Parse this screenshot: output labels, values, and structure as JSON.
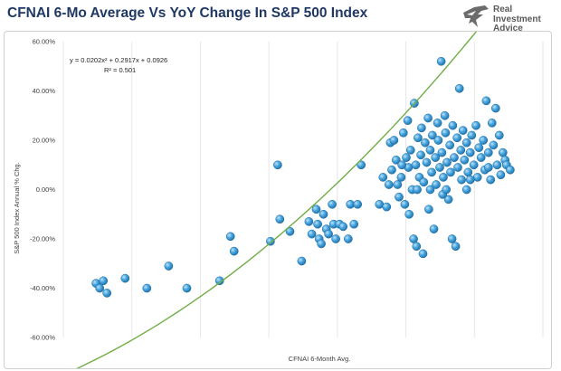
{
  "page": {
    "title": "CFNAI 6-Mo Average Vs YoY Change In S&P 500 Index",
    "brand_line1": "Real",
    "brand_line2": "Investment",
    "brand_line3": "Advice"
  },
  "chart_data": {
    "type": "scatter",
    "title": "CFNAI 6-Mo Average Vs YoY Change In S&P 500 Index",
    "xlabel": "CFNAI 6-Month Avg.",
    "ylabel": "S&P 500 Index Annual % Chg.",
    "x_tick_labels_shown": false,
    "ylim": [
      -0.6,
      0.6
    ],
    "y_ticks": [
      "60.00%",
      "40.00%",
      "20.00%",
      "0.00%",
      "-20.00%",
      "-40.00%",
      "-60.00%"
    ],
    "grid": "vertical-only",
    "trendline": {
      "type": "polynomial",
      "equation": "y = 0.0202x² + 0.2917x + 0.0926",
      "r_squared": "R² = 0.501",
      "coefficients": [
        0.0202,
        0.2917,
        0.0926
      ],
      "color": "#70ad47"
    },
    "point_color": "#3a9bd5",
    "points": [
      [
        -3.55,
        -0.38
      ],
      [
        -3.45,
        -0.37
      ],
      [
        -3.5,
        -0.4
      ],
      [
        -3.4,
        -0.42
      ],
      [
        -3.15,
        -0.36
      ],
      [
        -2.85,
        -0.4
      ],
      [
        -2.55,
        -0.31
      ],
      [
        -2.3,
        -0.4
      ],
      [
        -1.85,
        -0.37
      ],
      [
        -1.7,
        -0.19
      ],
      [
        -1.65,
        -0.25
      ],
      [
        -1.15,
        -0.21
      ],
      [
        -1.02,
        -0.12
      ],
      [
        -1.05,
        0.1
      ],
      [
        -0.88,
        -0.17
      ],
      [
        -0.72,
        -0.29
      ],
      [
        -0.62,
        -0.13
      ],
      [
        -0.58,
        -0.18
      ],
      [
        -0.52,
        -0.08
      ],
      [
        -0.5,
        -0.14
      ],
      [
        -0.48,
        -0.2
      ],
      [
        -0.45,
        -0.22
      ],
      [
        -0.42,
        -0.1
      ],
      [
        -0.38,
        -0.16
      ],
      [
        -0.35,
        -0.18
      ],
      [
        -0.3,
        -0.06
      ],
      [
        -0.28,
        -0.14
      ],
      [
        -0.25,
        -0.2
      ],
      [
        -0.2,
        -0.14
      ],
      [
        -0.15,
        -0.15
      ],
      [
        -0.08,
        -0.2
      ],
      [
        -0.05,
        -0.06
      ],
      [
        0.0,
        -0.14
      ],
      [
        0.05,
        -0.06
      ],
      [
        0.1,
        0.1
      ],
      [
        0.35,
        -0.06
      ],
      [
        0.45,
        -0.07
      ],
      [
        0.5,
        0.19
      ],
      [
        0.55,
        0.2
      ],
      [
        0.52,
        0.08
      ],
      [
        0.58,
        0.12
      ],
      [
        0.6,
        0.02
      ],
      [
        0.62,
        -0.03
      ],
      [
        0.65,
        0.05
      ],
      [
        0.68,
        0.23
      ],
      [
        0.7,
        -0.06
      ],
      [
        0.72,
        0.13
      ],
      [
        0.74,
        0.28
      ],
      [
        0.75,
        0.09
      ],
      [
        0.76,
        -0.1
      ],
      [
        0.78,
        0.16
      ],
      [
        0.8,
        0.0
      ],
      [
        0.82,
        -0.2
      ],
      [
        0.83,
        0.35
      ],
      [
        0.85,
        0.1
      ],
      [
        0.86,
        -0.23
      ],
      [
        0.88,
        0.21
      ],
      [
        0.9,
        0.05
      ],
      [
        0.92,
        0.14
      ],
      [
        0.93,
        0.25
      ],
      [
        0.95,
        -0.26
      ],
      [
        0.96,
        0.03
      ],
      [
        0.98,
        0.19
      ],
      [
        1.0,
        0.11
      ],
      [
        1.02,
        0.29
      ],
      [
        1.03,
        -0.08
      ],
      [
        1.05,
        0.16
      ],
      [
        1.07,
        0.07
      ],
      [
        1.08,
        0.22
      ],
      [
        1.1,
        -0.16
      ],
      [
        1.12,
        0.13
      ],
      [
        1.13,
        0.02
      ],
      [
        1.15,
        0.27
      ],
      [
        1.16,
        0.2
      ],
      [
        1.18,
        0.09
      ],
      [
        1.2,
        0.52
      ],
      [
        1.21,
        0.15
      ],
      [
        1.23,
        0.05
      ],
      [
        1.25,
        0.3
      ],
      [
        1.26,
        0.23
      ],
      [
        1.28,
        0.11
      ],
      [
        1.3,
        -0.04
      ],
      [
        1.32,
        0.18
      ],
      [
        1.33,
        0.07
      ],
      [
        1.35,
        -0.2
      ],
      [
        1.36,
        0.26
      ],
      [
        1.38,
        0.13
      ],
      [
        1.4,
        -0.23
      ],
      [
        1.42,
        0.21
      ],
      [
        1.43,
        0.09
      ],
      [
        1.45,
        0.41
      ],
      [
        1.47,
        0.16
      ],
      [
        1.48,
        0.04
      ],
      [
        1.5,
        0.24
      ],
      [
        1.52,
        0.12
      ],
      [
        1.55,
        0.19
      ],
      [
        1.57,
        0.07
      ],
      [
        1.6,
        0.15
      ],
      [
        1.62,
        0.22
      ],
      [
        1.65,
        0.1
      ],
      [
        1.68,
        0.26
      ],
      [
        1.7,
        0.05
      ],
      [
        1.72,
        0.17
      ],
      [
        1.75,
        0.13
      ],
      [
        1.78,
        0.2
      ],
      [
        1.8,
        0.08
      ],
      [
        1.82,
        0.36
      ],
      [
        1.85,
        0.15
      ],
      [
        1.88,
        0.04
      ],
      [
        1.9,
        0.27
      ],
      [
        1.92,
        0.18
      ],
      [
        1.95,
        0.33
      ],
      [
        1.97,
        0.1
      ],
      [
        2.0,
        0.22
      ],
      [
        2.02,
        0.06
      ],
      [
        2.05,
        0.15
      ],
      [
        2.08,
        0.12
      ],
      [
        2.1,
        0.1
      ],
      [
        2.15,
        0.08
      ],
      [
        0.4,
        0.05
      ],
      [
        0.48,
        0.02
      ],
      [
        0.66,
        0.1
      ],
      [
        0.87,
        0.0
      ],
      [
        1.05,
        0.0
      ],
      [
        1.22,
        -0.02
      ],
      [
        1.27,
        0.0
      ],
      [
        1.55,
        0.0
      ],
      [
        1.6,
        0.04
      ],
      [
        1.85,
        0.09
      ]
    ]
  }
}
